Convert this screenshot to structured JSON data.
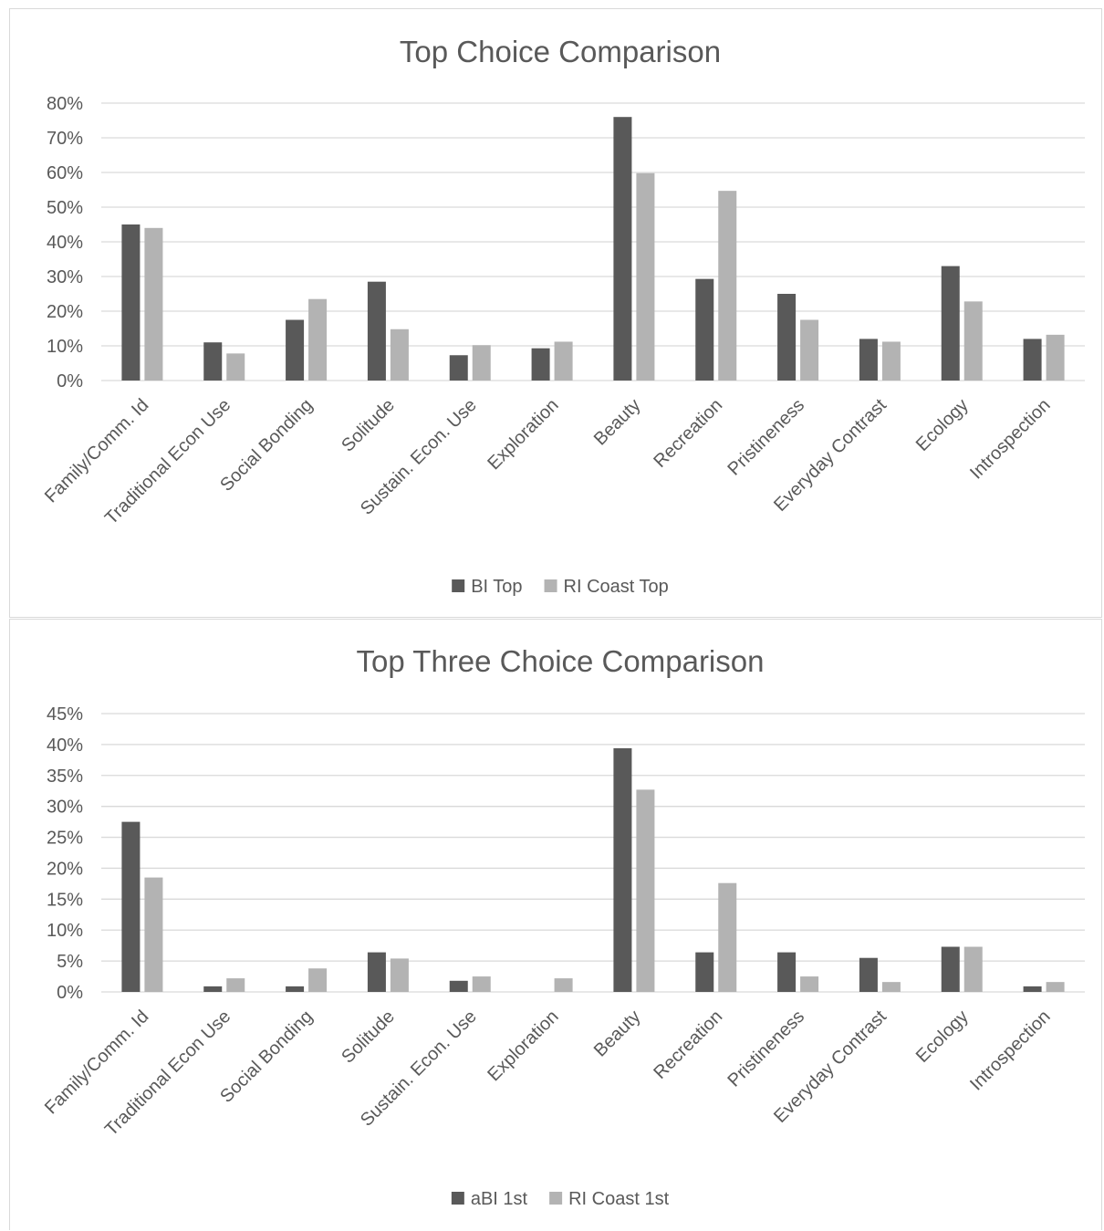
{
  "chart_data": [
    {
      "type": "bar",
      "title": "Top Choice Comparison",
      "categories": [
        "Family/Comm. Id",
        "Traditional Econ Use",
        "Social Bonding",
        "Solitude",
        "Sustain. Econ. Use",
        "Exploration",
        "Beauty",
        "Recreation",
        "Pristineness",
        "Everyday Contrast",
        "Ecology",
        "Introspection"
      ],
      "series": [
        {
          "name": "BI Top",
          "color": "#595959",
          "values": [
            0.45,
            0.11,
            0.175,
            0.285,
            0.073,
            0.093,
            0.76,
            0.293,
            0.25,
            0.12,
            0.33,
            0.12
          ]
        },
        {
          "name": "RI Coast Top",
          "color": "#b3b3b3",
          "values": [
            0.44,
            0.078,
            0.235,
            0.148,
            0.102,
            0.112,
            0.598,
            0.547,
            0.175,
            0.112,
            0.228,
            0.132
          ]
        }
      ],
      "yticks": [
        "0%",
        "10%",
        "20%",
        "30%",
        "40%",
        "50%",
        "60%",
        "70%",
        "80%"
      ],
      "ylim": [
        0,
        0.8
      ],
      "grid": true,
      "legend_position": "bottom"
    },
    {
      "type": "bar",
      "title": "Top Three Choice Comparison",
      "categories": [
        "Family/Comm. Id",
        "Traditional Econ Use",
        "Social Bonding",
        "Solitude",
        "Sustain. Econ. Use",
        "Exploration",
        "Beauty",
        "Recreation",
        "Pristineness",
        "Everyday Contrast",
        "Ecology",
        "Introspection"
      ],
      "series": [
        {
          "name": "aBI 1st",
          "color": "#595959",
          "values": [
            0.275,
            0.009,
            0.009,
            0.064,
            0.018,
            0.0,
            0.394,
            0.064,
            0.064,
            0.055,
            0.073,
            0.009
          ]
        },
        {
          "name": "RI Coast 1st",
          "color": "#b3b3b3",
          "values": [
            0.185,
            0.022,
            0.038,
            0.054,
            0.025,
            0.022,
            0.327,
            0.176,
            0.025,
            0.016,
            0.073,
            0.016
          ]
        }
      ],
      "yticks": [
        "0%",
        "5%",
        "10%",
        "15%",
        "20%",
        "25%",
        "30%",
        "35%",
        "40%",
        "45%"
      ],
      "ylim": [
        0,
        0.45
      ],
      "grid": true,
      "legend_position": "bottom"
    }
  ]
}
